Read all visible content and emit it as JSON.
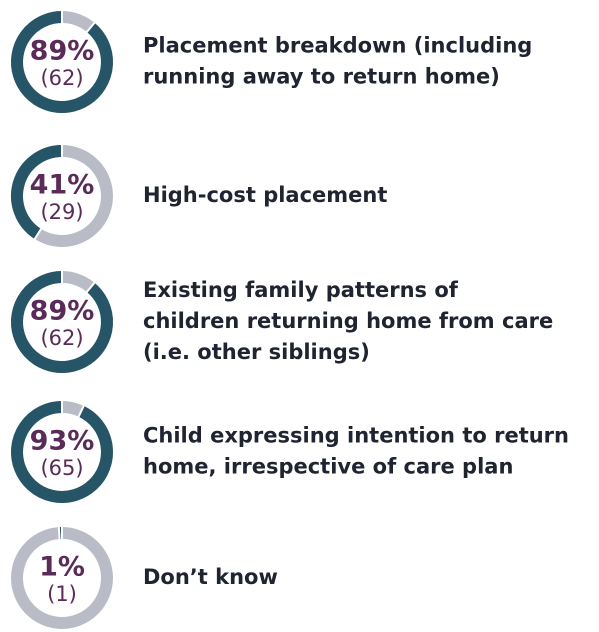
{
  "chart_data": {
    "type": "donut",
    "categories": [
      [
        "Placement breakdown (including",
        "running away to return home)"
      ],
      [
        "High-cost placement"
      ],
      [
        "Existing family patterns of",
        "children returning home from care",
        "(i.e. other siblings)"
      ],
      [
        "Child expressing intention to return",
        "home, irrespective of care plan"
      ],
      [
        "Don’t know"
      ]
    ],
    "values": [
      89,
      41,
      89,
      93,
      1
    ],
    "value_labels": [
      "89%",
      "41%",
      "89%",
      "93%",
      "1%"
    ],
    "counts": [
      62,
      29,
      62,
      65,
      1
    ],
    "count_labels": [
      "(62)",
      "(29)",
      "(62)",
      "(65)",
      "(1)"
    ],
    "color": "#265568",
    "rest_color": "#b9bcc7",
    "ylim": [
      0,
      100
    ]
  }
}
